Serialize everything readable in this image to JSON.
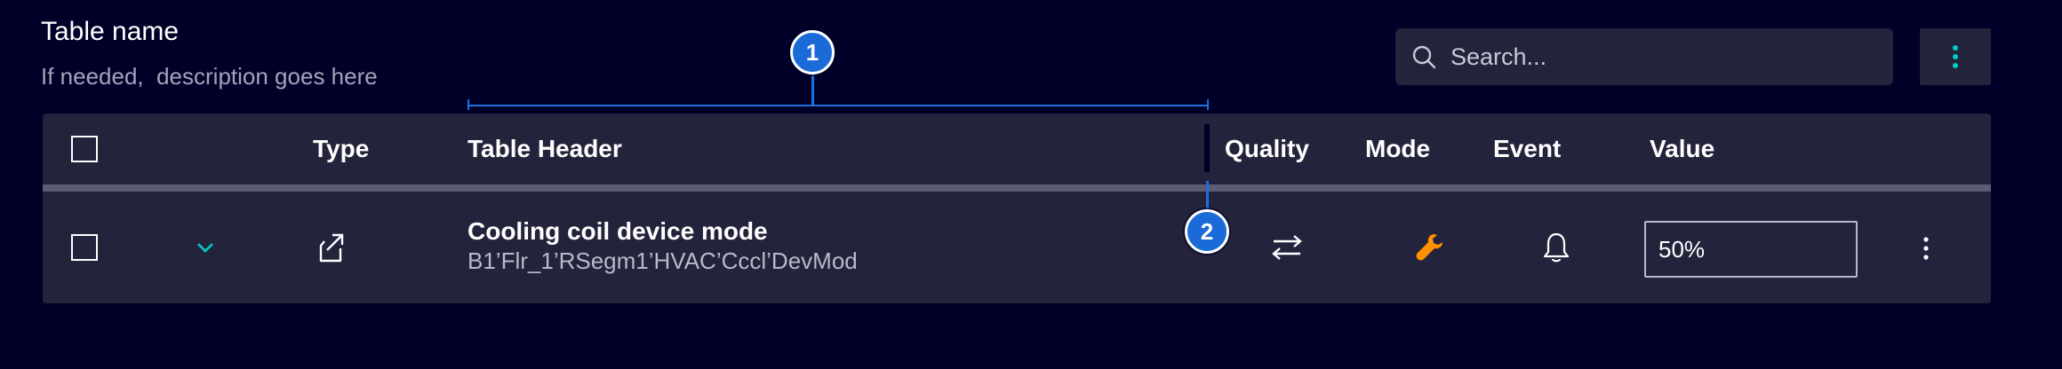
{
  "header": {
    "title": "Table name",
    "description": "If needed,  description goes here"
  },
  "search": {
    "placeholder": "Search..."
  },
  "annotations": {
    "badge1": "1",
    "badge2": "2"
  },
  "table": {
    "columns": [
      "Type",
      "Table Header",
      "Quality",
      "Mode",
      "Event",
      "Value"
    ],
    "rows": [
      {
        "title": "Cooling coil device mode",
        "path": "B1’Flr_1’RSegm1’HVAC’Cccl’DevMod",
        "value": "50%"
      }
    ]
  },
  "icons": {
    "search": "search-icon",
    "more": "kebab-menu-icon",
    "expand": "chevron-down-icon",
    "type": "export-arrow-icon",
    "quality": "swap-arrows-icon",
    "mode": "wrench-icon",
    "event": "bell-icon",
    "row_more": "kebab-menu-icon"
  },
  "colors": {
    "background": "#000028",
    "surface": "#23233c",
    "accent": "#00cccc",
    "annotation": "#1a6ad8",
    "mode_icon": "#ff9000"
  }
}
